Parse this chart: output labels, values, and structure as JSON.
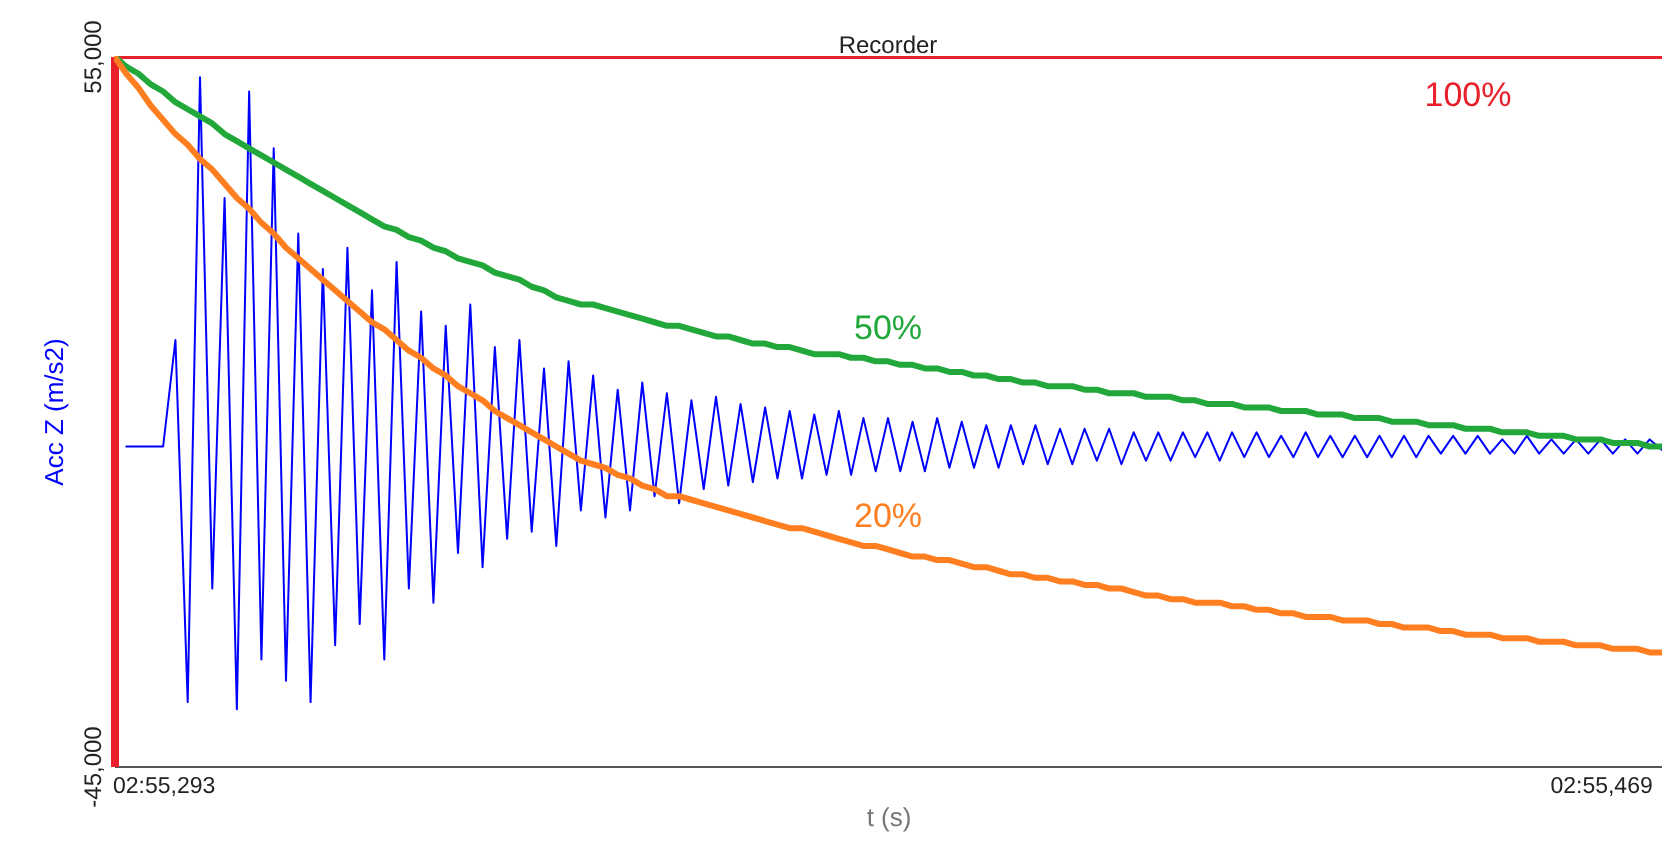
{
  "chart_data": {
    "type": "line",
    "title": "Recorder",
    "xlabel": "t (s)",
    "ylabel": "Acc Z (m/s2)",
    "categories": [
      null,
      null,
      null,
      null,
      "02:55,293",
      null,
      null,
      null,
      null,
      null,
      null,
      null,
      null,
      null,
      null,
      null,
      null,
      null,
      null,
      null,
      null,
      null,
      null,
      null,
      null,
      null,
      null,
      null,
      null,
      null,
      null,
      null,
      null,
      null,
      null,
      null,
      null,
      null,
      null,
      null,
      null,
      null,
      null,
      null,
      null,
      null,
      null,
      null,
      null,
      null,
      null,
      null,
      null,
      null,
      null,
      null,
      null,
      null,
      null,
      null,
      null,
      null,
      null,
      null,
      null,
      null,
      null,
      null,
      null,
      null,
      null,
      null,
      null,
      null,
      null,
      null,
      null,
      null,
      null,
      null,
      null,
      null,
      null,
      null,
      null,
      null,
      null,
      null,
      null,
      null,
      null,
      null,
      null,
      null,
      null,
      null,
      null,
      null,
      null,
      null,
      null,
      null,
      null,
      null,
      null,
      null,
      null,
      null,
      null,
      null,
      null,
      null,
      null,
      null,
      null,
      null,
      null,
      null,
      null,
      null,
      null,
      "02:55,469",
      null,
      null,
      null,
      null,
      null
    ],
    "ylim": [
      -45000,
      55000
    ],
    "yticks": [
      {
        "value": -45000,
        "label": "-45,000"
      },
      {
        "value": 55000,
        "label": "55,000"
      }
    ],
    "series": [
      {
        "color": "#0000ff",
        "values": [
          null,
          0,
          0,
          0,
          0,
          15000,
          -36000,
          52000,
          -20000,
          35000,
          -37000,
          50000,
          -30000,
          42000,
          -33000,
          30000,
          -36000,
          25000,
          -28000,
          28000,
          -25000,
          22000,
          -30000,
          26000,
          -20000,
          19000,
          -22000,
          17000,
          -15000,
          20000,
          -17000,
          14000,
          -13000,
          15000,
          -12000,
          11000,
          -14000,
          12000,
          -9000,
          10000,
          -10000,
          8000,
          -9000,
          9000,
          -7000,
          7500,
          -8000,
          6500,
          -6000,
          7000,
          -5500,
          6000,
          -5000,
          5500,
          -4500,
          5000,
          -4500,
          4500,
          -4000,
          5000,
          -4000,
          4000,
          -3500,
          4000,
          -3500,
          3500,
          -3500,
          4000,
          -3000,
          3500,
          -3000,
          3000,
          -3000,
          3000,
          -2500,
          3000,
          -2500,
          2500,
          -2500,
          2500,
          -2000,
          2500,
          -2500,
          2000,
          -2000,
          2000,
          -2000,
          2000,
          -1500,
          2000,
          -2000,
          2000,
          -1500,
          2000,
          -1500,
          1500,
          -1500,
          2000,
          -1500,
          1500,
          -1500,
          1500,
          -1500,
          1500,
          -1500,
          1500,
          -1500,
          1500,
          -1000,
          1500,
          -1000,
          1500,
          -1000,
          1000,
          -1000,
          1500,
          -1000,
          1000,
          -1000,
          1000,
          -1000,
          1000,
          -1000,
          1000,
          -1000,
          1000,
          -500
        ]
      },
      {
        "name": "100%",
        "color": "#e8202a",
        "values": [
          55000,
          55000,
          55000,
          55000,
          55000,
          55000,
          55000,
          55000,
          55000,
          55000,
          55000,
          55000,
          55000,
          55000,
          55000,
          55000,
          55000,
          55000,
          55000,
          55000,
          55000,
          55000,
          55000,
          55000,
          55000,
          55000,
          55000,
          55000,
          55000,
          55000,
          55000,
          55000,
          55000,
          55000,
          55000,
          55000,
          55000,
          55000,
          55000,
          55000,
          55000,
          55000,
          55000,
          55000,
          55000,
          55000,
          55000,
          55000,
          55000,
          55000,
          55000,
          55000,
          55000,
          55000,
          55000,
          55000,
          55000,
          55000,
          55000,
          55000,
          55000,
          55000,
          55000,
          55000,
          55000,
          55000,
          55000,
          55000,
          55000,
          55000,
          55000,
          55000,
          55000,
          55000,
          55000,
          55000,
          55000,
          55000,
          55000,
          55000,
          55000,
          55000,
          55000,
          55000,
          55000,
          55000,
          55000,
          55000,
          55000,
          55000,
          55000,
          55000,
          55000,
          55000,
          55000,
          55000,
          55000,
          55000,
          55000,
          55000,
          55000,
          55000,
          55000,
          55000,
          55000,
          55000,
          55000,
          55000,
          55000,
          55000,
          55000,
          55000,
          55000,
          55000,
          55000,
          55000,
          55000,
          55000,
          55000,
          55000,
          55000,
          55000,
          55000,
          55000,
          55000,
          55000,
          55000
        ]
      },
      {
        "name": "50%",
        "color": "#22a83a",
        "values": [
          55000,
          53500,
          52500,
          51000,
          50000,
          48500,
          47500,
          46500,
          45500,
          44000,
          43000,
          42000,
          41000,
          40000,
          39000,
          38000,
          37000,
          36000,
          35000,
          34000,
          33000,
          32000,
          31000,
          30500,
          29500,
          29000,
          28000,
          27500,
          26500,
          26000,
          25500,
          24500,
          24000,
          23500,
          22500,
          22000,
          21000,
          20500,
          20000,
          20000,
          19500,
          19000,
          18500,
          18000,
          17500,
          17000,
          17000,
          16500,
          16000,
          15500,
          15500,
          15000,
          14500,
          14500,
          14000,
          14000,
          13500,
          13000,
          13000,
          13000,
          12500,
          12500,
          12000,
          12000,
          11500,
          11500,
          11000,
          11000,
          10500,
          10500,
          10000,
          10000,
          9500,
          9500,
          9000,
          9000,
          8500,
          8500,
          8500,
          8000,
          8000,
          7500,
          7500,
          7500,
          7000,
          7000,
          7000,
          6500,
          6500,
          6000,
          6000,
          6000,
          5500,
          5500,
          5500,
          5000,
          5000,
          5000,
          4500,
          4500,
          4500,
          4000,
          4000,
          4000,
          3500,
          3500,
          3500,
          3000,
          3000,
          3000,
          2500,
          2500,
          2500,
          2000,
          2000,
          2000,
          1500,
          1500,
          1500,
          1000,
          1000,
          1000,
          500,
          500,
          500,
          0,
          0
        ]
      },
      {
        "name": "20%",
        "color": "#ff7f20",
        "values": [
          55000,
          52500,
          50500,
          48000,
          46000,
          44000,
          42500,
          40500,
          39000,
          37000,
          35000,
          33500,
          31500,
          30000,
          28000,
          26500,
          25000,
          23500,
          22000,
          20500,
          19000,
          17500,
          16500,
          15000,
          13500,
          12500,
          11000,
          10000,
          8500,
          7500,
          6500,
          5000,
          4000,
          3000,
          2000,
          1000,
          0,
          -1000,
          -2000,
          -2500,
          -3000,
          -4000,
          -4500,
          -5500,
          -6000,
          -7000,
          -7000,
          -7500,
          -8000,
          -8500,
          -9000,
          -9500,
          -10000,
          -10500,
          -11000,
          -11500,
          -11500,
          -12000,
          -12500,
          -13000,
          -13500,
          -14000,
          -14000,
          -14500,
          -15000,
          -15500,
          -15500,
          -16000,
          -16000,
          -16500,
          -17000,
          -17000,
          -17500,
          -18000,
          -18000,
          -18500,
          -18500,
          -19000,
          -19000,
          -19500,
          -19500,
          -20000,
          -20000,
          -20500,
          -21000,
          -21000,
          -21500,
          -21500,
          -22000,
          -22000,
          -22000,
          -22500,
          -22500,
          -23000,
          -23000,
          -23500,
          -23500,
          -24000,
          -24000,
          -24000,
          -24500,
          -24500,
          -24500,
          -25000,
          -25000,
          -25500,
          -25500,
          -25500,
          -26000,
          -26000,
          -26500,
          -26500,
          -26500,
          -27000,
          -27000,
          -27000,
          -27500,
          -27500,
          -27500,
          -28000,
          -28000,
          -28000,
          -28500,
          -28500,
          -28500,
          -29000,
          -29000
        ]
      }
    ]
  }
}
